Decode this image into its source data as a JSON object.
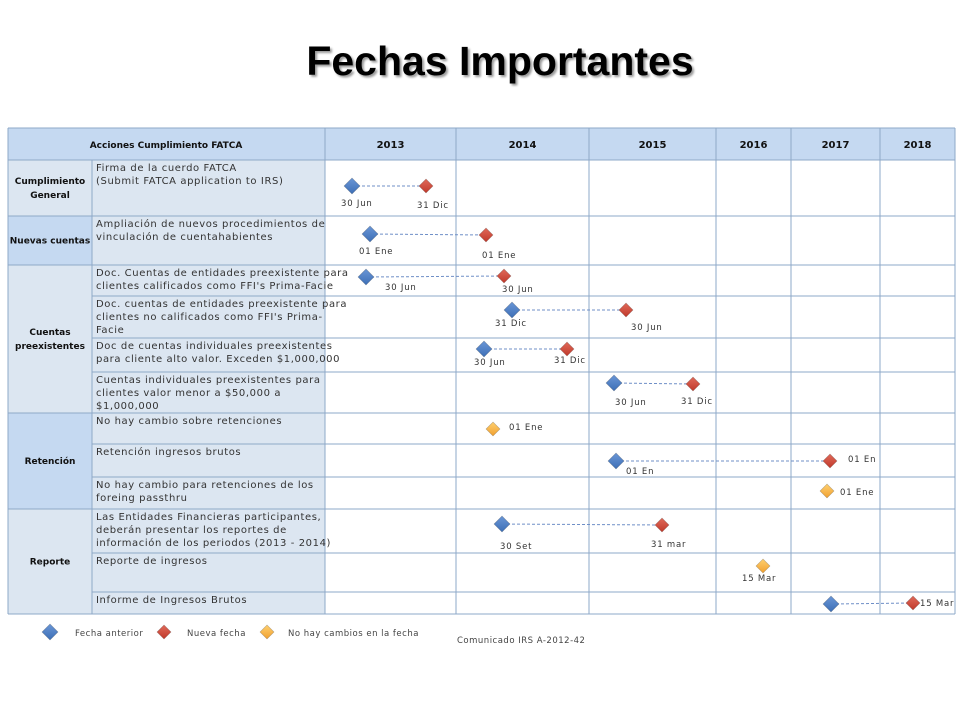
{
  "title": "Fechas Importantes",
  "header": {
    "actions_label": "Acciones Cumplimiento FATCA",
    "years": [
      "2013",
      "2014",
      "2015",
      "2016",
      "2017",
      "2018"
    ]
  },
  "groups": [
    {
      "name": "Cumplimiento General",
      "lines": [
        "Cumplimiento",
        "General"
      ]
    },
    {
      "name": "Nuevas cuentas",
      "lines": [
        "Nuevas cuentas"
      ]
    },
    {
      "name": "Cuentas preexistentes",
      "lines": [
        "Cuentas",
        "preexistentes"
      ]
    },
    {
      "name": "Retención",
      "lines": [
        "Retención"
      ]
    },
    {
      "name": "Reporte",
      "lines": [
        "Reporte"
      ]
    }
  ],
  "rows": [
    {
      "group": 0,
      "text": [
        "Firma de la cuerdo FATCA",
        "(Submit FATCA application to IRS)"
      ],
      "markers": [
        {
          "type": "anterior",
          "label": "30 Jun"
        },
        {
          "type": "nueva",
          "label": "31 Dic"
        }
      ]
    },
    {
      "group": 1,
      "text": [
        "Ampliación de nuevos procedimientos de",
        "vinculación de cuentahabientes"
      ],
      "markers": [
        {
          "type": "anterior",
          "label": "01 Ene"
        },
        {
          "type": "nueva",
          "label": "01 Ene"
        }
      ]
    },
    {
      "group": 2,
      "text": [
        "Doc. Cuentas de entidades preexistente para",
        "clientes calificados como FFI's Prima-Facie"
      ],
      "markers": [
        {
          "type": "anterior",
          "label": "30 Jun"
        },
        {
          "type": "nueva",
          "label": "30 Jun"
        }
      ]
    },
    {
      "group": 2,
      "text": [
        "Doc. cuentas de entidades preexistente para",
        "clientes no calificados como FFI's Prima-",
        "Facie"
      ],
      "markers": [
        {
          "type": "anterior",
          "label": "31 Dic"
        },
        {
          "type": "nueva",
          "label": "30 Jun"
        }
      ]
    },
    {
      "group": 2,
      "text": [
        "Doc de cuentas individuales preexistentes",
        "para cliente alto valor. Exceden $1,000,000"
      ],
      "markers": [
        {
          "type": "anterior",
          "label": "30 Jun"
        },
        {
          "type": "nueva",
          "label": "31 Dic"
        }
      ]
    },
    {
      "group": 2,
      "text": [
        "Cuentas individuales preexistentes para",
        "clientes valor menor a $50,000 a",
        "$1,000,000"
      ],
      "markers": [
        {
          "type": "anterior",
          "label": "30 Jun"
        },
        {
          "type": "nueva",
          "label": "31 Dic"
        }
      ]
    },
    {
      "group": 3,
      "text": [
        "No hay cambio sobre retenciones"
      ],
      "markers": [
        {
          "type": "sin_cambio",
          "label": "01 Ene"
        }
      ]
    },
    {
      "group": 3,
      "text": [
        "Retención ingresos brutos"
      ],
      "markers": [
        {
          "type": "anterior",
          "label": "01 En"
        },
        {
          "type": "nueva",
          "label": "01 En"
        }
      ]
    },
    {
      "group": 3,
      "text": [
        "No hay cambio para retenciones de los",
        "foreing passthru"
      ],
      "markers": [
        {
          "type": "sin_cambio",
          "label": "01 Ene"
        }
      ]
    },
    {
      "group": 4,
      "text": [
        "Las Entidades Financieras participantes,",
        "deberán presentar los reportes de",
        "información de los periodos (2013 - 2014)"
      ],
      "markers": [
        {
          "type": "anterior",
          "label": "30 Set"
        },
        {
          "type": "nueva",
          "label": "31 mar"
        }
      ]
    },
    {
      "group": 4,
      "text": [
        "Reporte de ingresos"
      ],
      "markers": [
        {
          "type": "sin_cambio",
          "label": "15 Mar"
        }
      ]
    },
    {
      "group": 4,
      "text": [
        "Informe de Ingresos Brutos"
      ],
      "markers": [
        {
          "type": "anterior",
          "label": ""
        },
        {
          "type": "nueva",
          "label": "15 Mar"
        }
      ]
    }
  ],
  "legend": {
    "anterior": "Fecha anterior",
    "nueva": "Nueva fecha",
    "sin_cambio": "No hay cambios en la fecha",
    "source": "Comunicado IRS A-2012-42"
  },
  "colors": {
    "anterior": "#3d6fb6",
    "nueva": "#c0392b",
    "sin_cambio": "#f0a030",
    "header_fill": "#c5d9f1",
    "label_fill": "#dce6f1",
    "grid": "#8ea9c8",
    "connector": "#6f8fc7"
  }
}
